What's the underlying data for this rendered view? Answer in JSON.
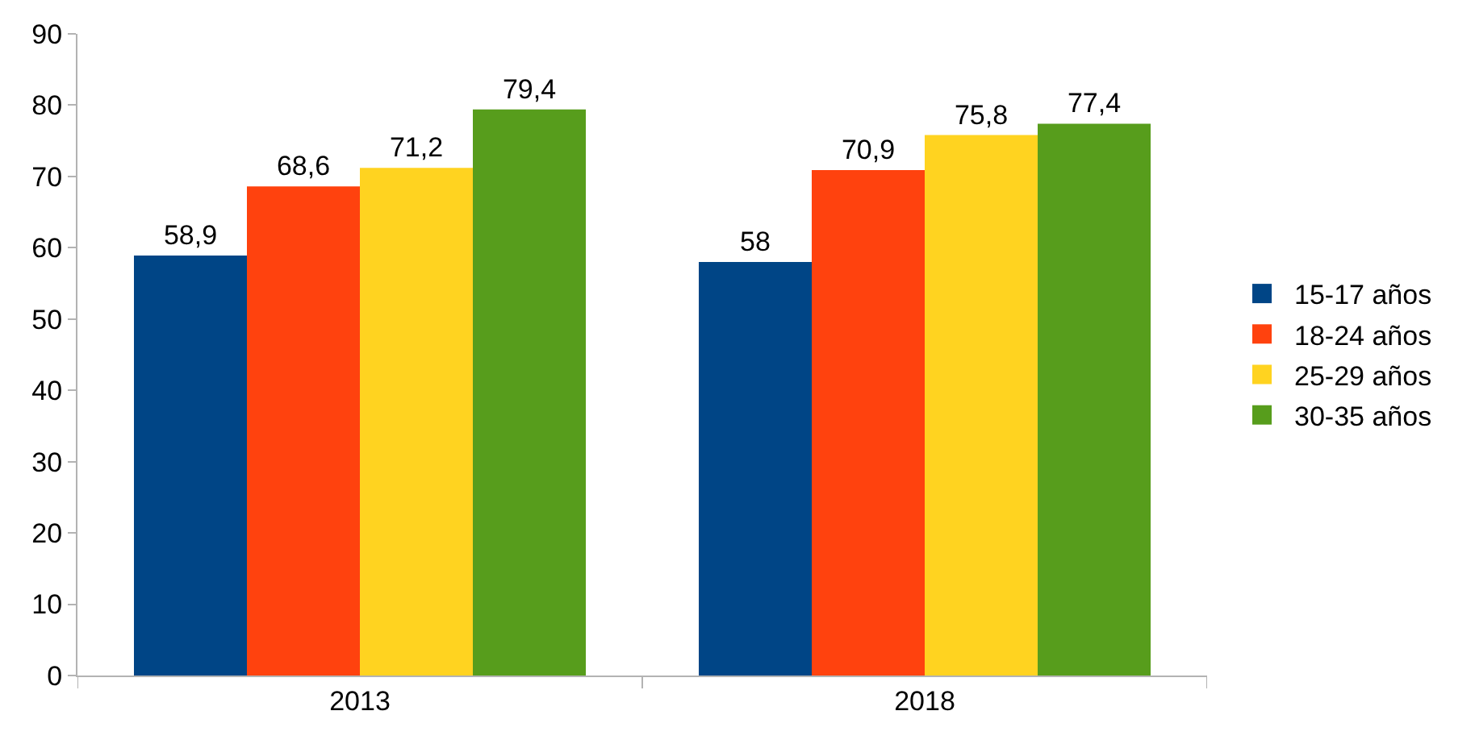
{
  "chart_data": {
    "type": "bar",
    "categories": [
      "2013",
      "2018"
    ],
    "series": [
      {
        "name": "15-17 años",
        "color": "#004586",
        "values": [
          58.9,
          58
        ],
        "value_labels": [
          "58,9",
          "58"
        ]
      },
      {
        "name": "18-24 años",
        "color": "#ff420e",
        "values": [
          68.6,
          70.9
        ],
        "value_labels": [
          "68,6",
          "70,9"
        ]
      },
      {
        "name": "25-29 años",
        "color": "#ffd320",
        "values": [
          71.2,
          75.8
        ],
        "value_labels": [
          "71,2",
          "75,8"
        ]
      },
      {
        "name": "30-35 años",
        "color": "#579d1c",
        "values": [
          79.4,
          77.4
        ],
        "value_labels": [
          "79,4",
          "77,4"
        ]
      }
    ],
    "ylim": [
      0,
      90
    ],
    "yticks": [
      0,
      10,
      20,
      30,
      40,
      50,
      60,
      70,
      80,
      90
    ],
    "grid": false,
    "legend": "right"
  }
}
